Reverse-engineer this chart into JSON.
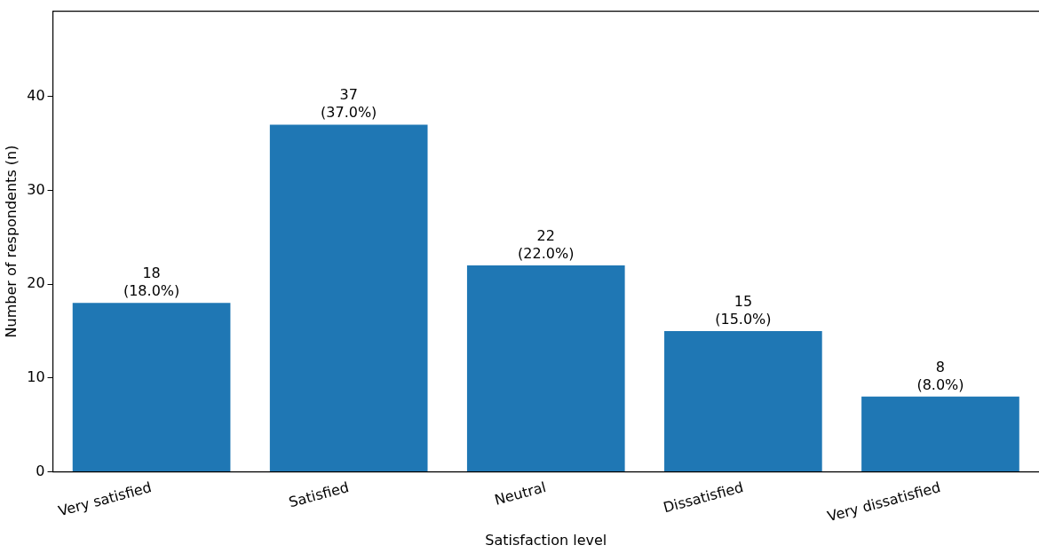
{
  "chart_data": {
    "type": "bar",
    "xlabel": "Satisfaction level",
    "ylabel": "Number of respondents (n)",
    "categories": [
      "Very satisfied",
      "Satisfied",
      "Neutral",
      "Dissatisfied",
      "Very dissatisfied"
    ],
    "values": [
      18,
      37,
      22,
      15,
      8
    ],
    "color": "#1f77b4",
    "value_labels": [
      "18\n(18.0%)",
      "37\n(37.0%)",
      "22\n(22.0%)",
      "15\n(15.0%)",
      "8\n(8.0%)"
    ],
    "ylim": [
      0,
      49.1
    ],
    "yticks": [
      0,
      10,
      20,
      30,
      40
    ],
    "grid": false,
    "legend": false
  }
}
